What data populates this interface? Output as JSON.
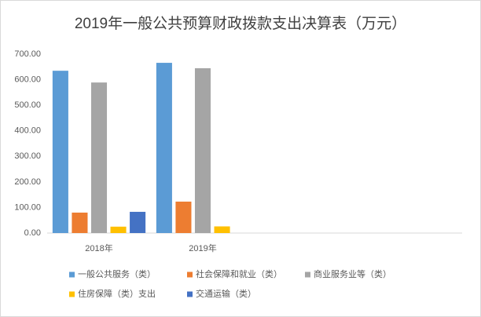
{
  "chart_data": {
    "type": "bar",
    "title": "2019年一般公共预算财政拨款支出决算表（万元）",
    "categories": [
      "2018年",
      "2019年",
      null,
      null
    ],
    "series": [
      {
        "name": "一般公共服务（类）",
        "color": "#5b9bd5",
        "values": [
          635,
          666,
          null,
          null
        ]
      },
      {
        "name": "社会保障和就业（类）",
        "color": "#ed7d31",
        "values": [
          80,
          123,
          null,
          null
        ]
      },
      {
        "name": "商业服务业等（类）",
        "color": "#a5a5a5",
        "values": [
          589,
          645,
          null,
          null
        ]
      },
      {
        "name": "住房保障（类）支出",
        "color": "#ffc000",
        "values": [
          25,
          26,
          null,
          null
        ]
      },
      {
        "name": "交通运输（类）",
        "color": "#4472c4",
        "values": [
          83,
          null,
          null,
          null
        ]
      }
    ],
    "ylim": [
      0,
      700
    ],
    "yticks": [
      {
        "value": 0,
        "label": "0.00"
      },
      {
        "value": 100,
        "label": "100.00"
      },
      {
        "value": 200,
        "label": "200.00"
      },
      {
        "value": 300,
        "label": "300.00"
      },
      {
        "value": 400,
        "label": "400.00"
      },
      {
        "value": 500,
        "label": "500.00"
      },
      {
        "value": 600,
        "label": "600.00"
      },
      {
        "value": 700,
        "label": "700.00"
      }
    ],
    "grid": false,
    "legend": "bottom"
  }
}
